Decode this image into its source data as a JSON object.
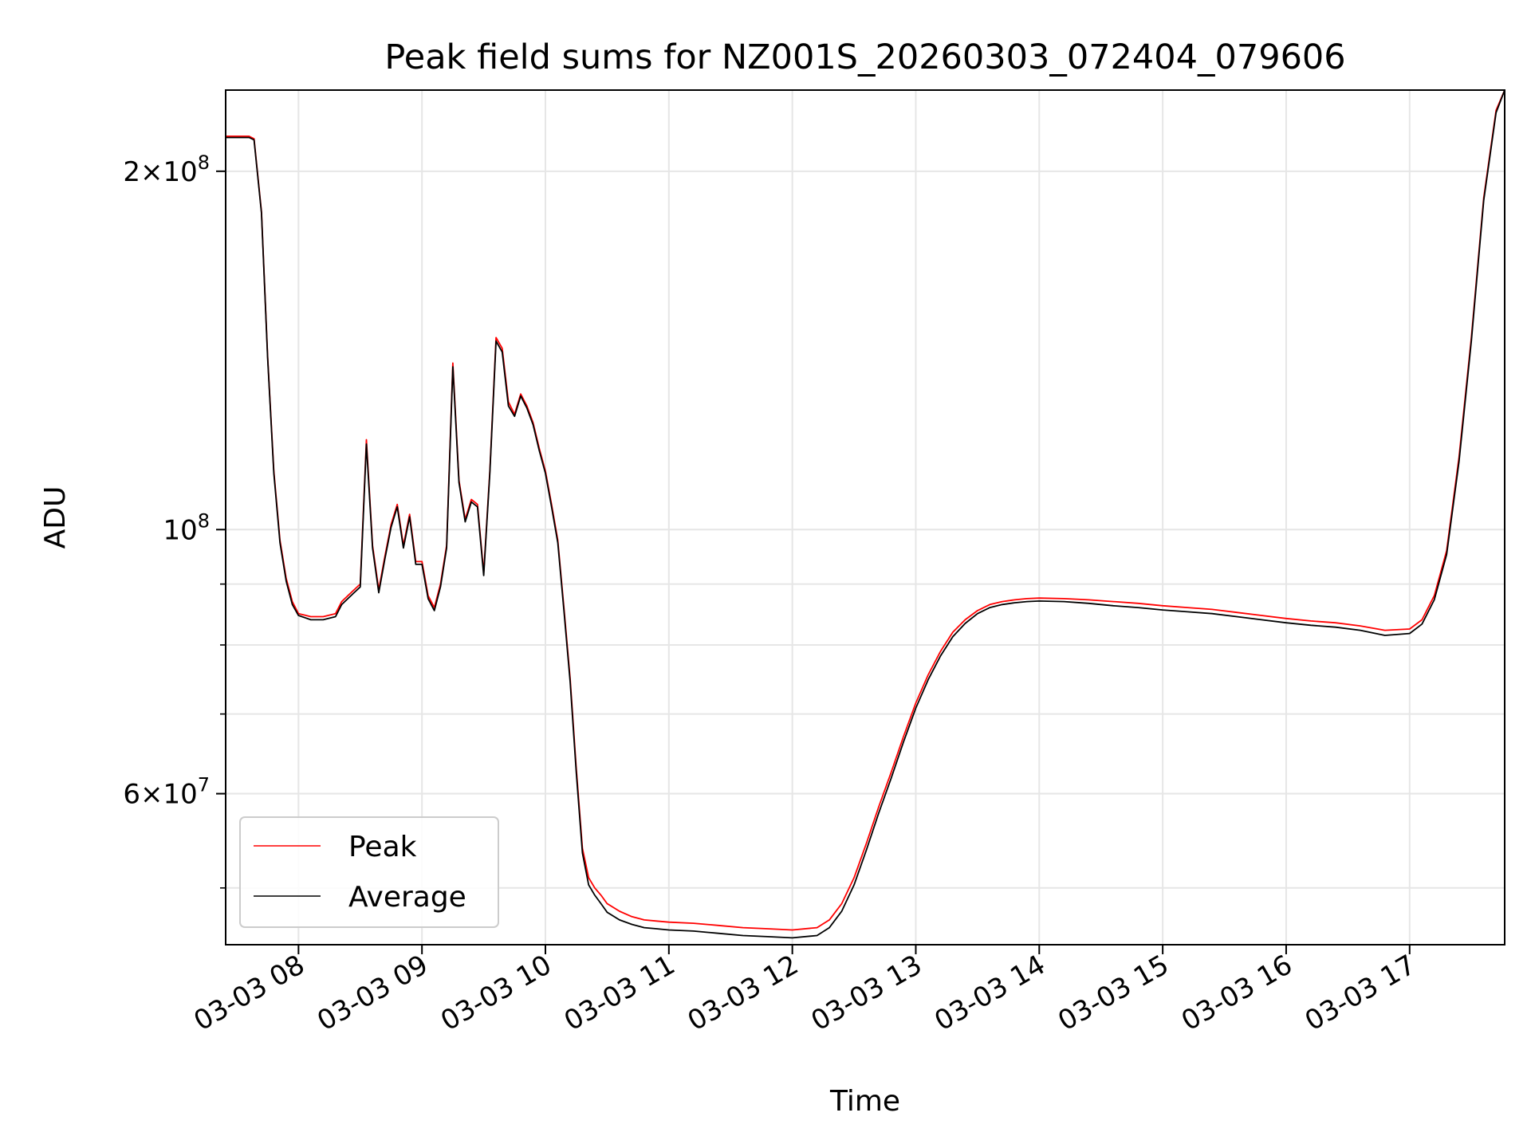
{
  "chart_data": {
    "type": "line",
    "title": "Peak field sums for NZ001S_20260303_072404_079606",
    "xlabel": "Time",
    "ylabel": "ADU",
    "x_unit": "hours (time of day, 03-03)",
    "xlim": [
      7.41,
      17.77
    ],
    "ylim": [
      44800000,
      234000000
    ],
    "yscale": "log",
    "grid": true,
    "legend_position": "lower-left",
    "x_ticks": [
      {
        "value": 8,
        "label": "03-03 08"
      },
      {
        "value": 9,
        "label": "03-03 09"
      },
      {
        "value": 10,
        "label": "03-03 10"
      },
      {
        "value": 11,
        "label": "03-03 11"
      },
      {
        "value": 12,
        "label": "03-03 12"
      },
      {
        "value": 13,
        "label": "03-03 13"
      },
      {
        "value": 14,
        "label": "03-03 14"
      },
      {
        "value": 15,
        "label": "03-03 15"
      },
      {
        "value": 16,
        "label": "03-03 16"
      },
      {
        "value": 17,
        "label": "03-03 17"
      }
    ],
    "y_ticks": [
      {
        "value": 200000000,
        "base": "2",
        "times": "×",
        "power": "10",
        "exp": "8"
      },
      {
        "value": 100000000,
        "base": "",
        "times": "",
        "power": "10",
        "exp": "8"
      },
      {
        "value": 60000000,
        "base": "6",
        "times": "×",
        "power": "10",
        "exp": "7"
      }
    ],
    "y_minor_ticks": [
      50000000,
      70000000,
      80000000,
      90000000
    ],
    "series": [
      {
        "name": "Peak",
        "color": "#ff0000",
        "x": [
          7.41,
          7.6,
          7.64,
          7.7,
          7.75,
          7.8,
          7.85,
          7.9,
          7.95,
          8.0,
          8.1,
          8.2,
          8.3,
          8.35,
          8.4,
          8.45,
          8.5,
          8.55,
          8.6,
          8.65,
          8.7,
          8.75,
          8.8,
          8.85,
          8.9,
          8.95,
          9.0,
          9.05,
          9.1,
          9.15,
          9.2,
          9.25,
          9.3,
          9.35,
          9.4,
          9.45,
          9.5,
          9.55,
          9.6,
          9.65,
          9.7,
          9.75,
          9.8,
          9.85,
          9.9,
          9.95,
          10.0,
          10.05,
          10.1,
          10.15,
          10.2,
          10.25,
          10.3,
          10.35,
          10.4,
          10.45,
          10.5,
          10.6,
          10.7,
          10.8,
          10.9,
          11.0,
          11.2,
          11.4,
          11.6,
          11.8,
          12.0,
          12.2,
          12.3,
          12.4,
          12.5,
          12.6,
          12.7,
          12.8,
          12.9,
          13.0,
          13.1,
          13.2,
          13.3,
          13.4,
          13.5,
          13.6,
          13.7,
          13.8,
          13.9,
          14.0,
          14.2,
          14.4,
          14.6,
          14.8,
          15.0,
          15.2,
          15.4,
          15.6,
          15.8,
          16.0,
          16.2,
          16.4,
          16.6,
          16.8,
          17.0,
          17.1,
          17.2,
          17.3,
          17.4,
          17.5,
          17.6,
          17.7,
          17.77
        ],
        "values": [
          214000000,
          214000000,
          213000000,
          185000000,
          140000000,
          112000000,
          98000000,
          91000000,
          87000000,
          85000000,
          84500000,
          84500000,
          85000000,
          87000000,
          88000000,
          89000000,
          90000000,
          119000000,
          97000000,
          89000000,
          95000000,
          101000000,
          105000000,
          97000000,
          103000000,
          94000000,
          94000000,
          88000000,
          86000000,
          90000000,
          97000000,
          138000000,
          110000000,
          102000000,
          106000000,
          105000000,
          92000000,
          112000000,
          145000000,
          142000000,
          128000000,
          125000000,
          130000000,
          127000000,
          123000000,
          117000000,
          112000000,
          105000000,
          98000000,
          86000000,
          75000000,
          63000000,
          54000000,
          51000000,
          50000000,
          49300000,
          48500000,
          47800000,
          47300000,
          47000000,
          46900000,
          46800000,
          46700000,
          46500000,
          46300000,
          46200000,
          46100000,
          46300000,
          47000000,
          48500000,
          51000000,
          54500000,
          58500000,
          62500000,
          67000000,
          71500000,
          75500000,
          79000000,
          82000000,
          84000000,
          85500000,
          86500000,
          87000000,
          87300000,
          87500000,
          87600000,
          87500000,
          87300000,
          87000000,
          86700000,
          86300000,
          86000000,
          85700000,
          85200000,
          84700000,
          84200000,
          83800000,
          83500000,
          83000000,
          82300000,
          82500000,
          84000000,
          88000000,
          96000000,
          115000000,
          145000000,
          190000000,
          225000000,
          234000000
        ]
      },
      {
        "name": "Average",
        "color": "#000000",
        "x": [
          7.41,
          7.6,
          7.64,
          7.7,
          7.75,
          7.8,
          7.85,
          7.9,
          7.95,
          8.0,
          8.1,
          8.2,
          8.3,
          8.35,
          8.4,
          8.45,
          8.5,
          8.55,
          8.6,
          8.65,
          8.7,
          8.75,
          8.8,
          8.85,
          8.9,
          8.95,
          9.0,
          9.05,
          9.1,
          9.15,
          9.2,
          9.25,
          9.3,
          9.35,
          9.4,
          9.45,
          9.5,
          9.55,
          9.6,
          9.65,
          9.7,
          9.75,
          9.8,
          9.85,
          9.9,
          9.95,
          10.0,
          10.05,
          10.1,
          10.15,
          10.2,
          10.25,
          10.3,
          10.35,
          10.4,
          10.45,
          10.5,
          10.6,
          10.7,
          10.8,
          10.9,
          11.0,
          11.2,
          11.4,
          11.6,
          11.8,
          12.0,
          12.2,
          12.3,
          12.4,
          12.5,
          12.6,
          12.7,
          12.8,
          12.9,
          13.0,
          13.1,
          13.2,
          13.3,
          13.4,
          13.5,
          13.6,
          13.7,
          13.8,
          13.9,
          14.0,
          14.2,
          14.4,
          14.6,
          14.8,
          15.0,
          15.2,
          15.4,
          15.6,
          15.8,
          16.0,
          16.2,
          16.4,
          16.6,
          16.8,
          17.0,
          17.1,
          17.2,
          17.3,
          17.4,
          17.5,
          17.6,
          17.7,
          17.77
        ],
        "values": [
          213500000,
          213500000,
          212500000,
          184500000,
          139500000,
          111500000,
          97500000,
          90500000,
          86500000,
          84700000,
          84000000,
          84000000,
          84500000,
          86500000,
          87500000,
          88500000,
          89500000,
          118000000,
          96500000,
          88500000,
          94500000,
          100500000,
          104500000,
          96500000,
          102500000,
          93500000,
          93500000,
          87500000,
          85500000,
          89500000,
          96500000,
          137000000,
          109500000,
          101500000,
          105500000,
          104500000,
          91500000,
          111500000,
          144000000,
          141000000,
          127000000,
          124500000,
          129500000,
          126500000,
          122500000,
          116500000,
          111500000,
          104500000,
          97500000,
          85500000,
          74500000,
          62500000,
          53500000,
          50300000,
          49300000,
          48500000,
          47700000,
          47000000,
          46600000,
          46300000,
          46200000,
          46100000,
          46000000,
          45800000,
          45600000,
          45500000,
          45400000,
          45600000,
          46300000,
          47800000,
          50300000,
          53800000,
          57800000,
          61800000,
          66300000,
          70800000,
          74800000,
          78300000,
          81300000,
          83400000,
          85000000,
          86000000,
          86500000,
          86800000,
          87000000,
          87100000,
          87000000,
          86700000,
          86300000,
          86000000,
          85600000,
          85300000,
          85000000,
          84500000,
          84000000,
          83500000,
          83100000,
          82800000,
          82300000,
          81500000,
          81800000,
          83300000,
          87300000,
          95300000,
          114000000,
          144000000,
          189000000,
          224000000,
          234000000
        ]
      }
    ]
  }
}
